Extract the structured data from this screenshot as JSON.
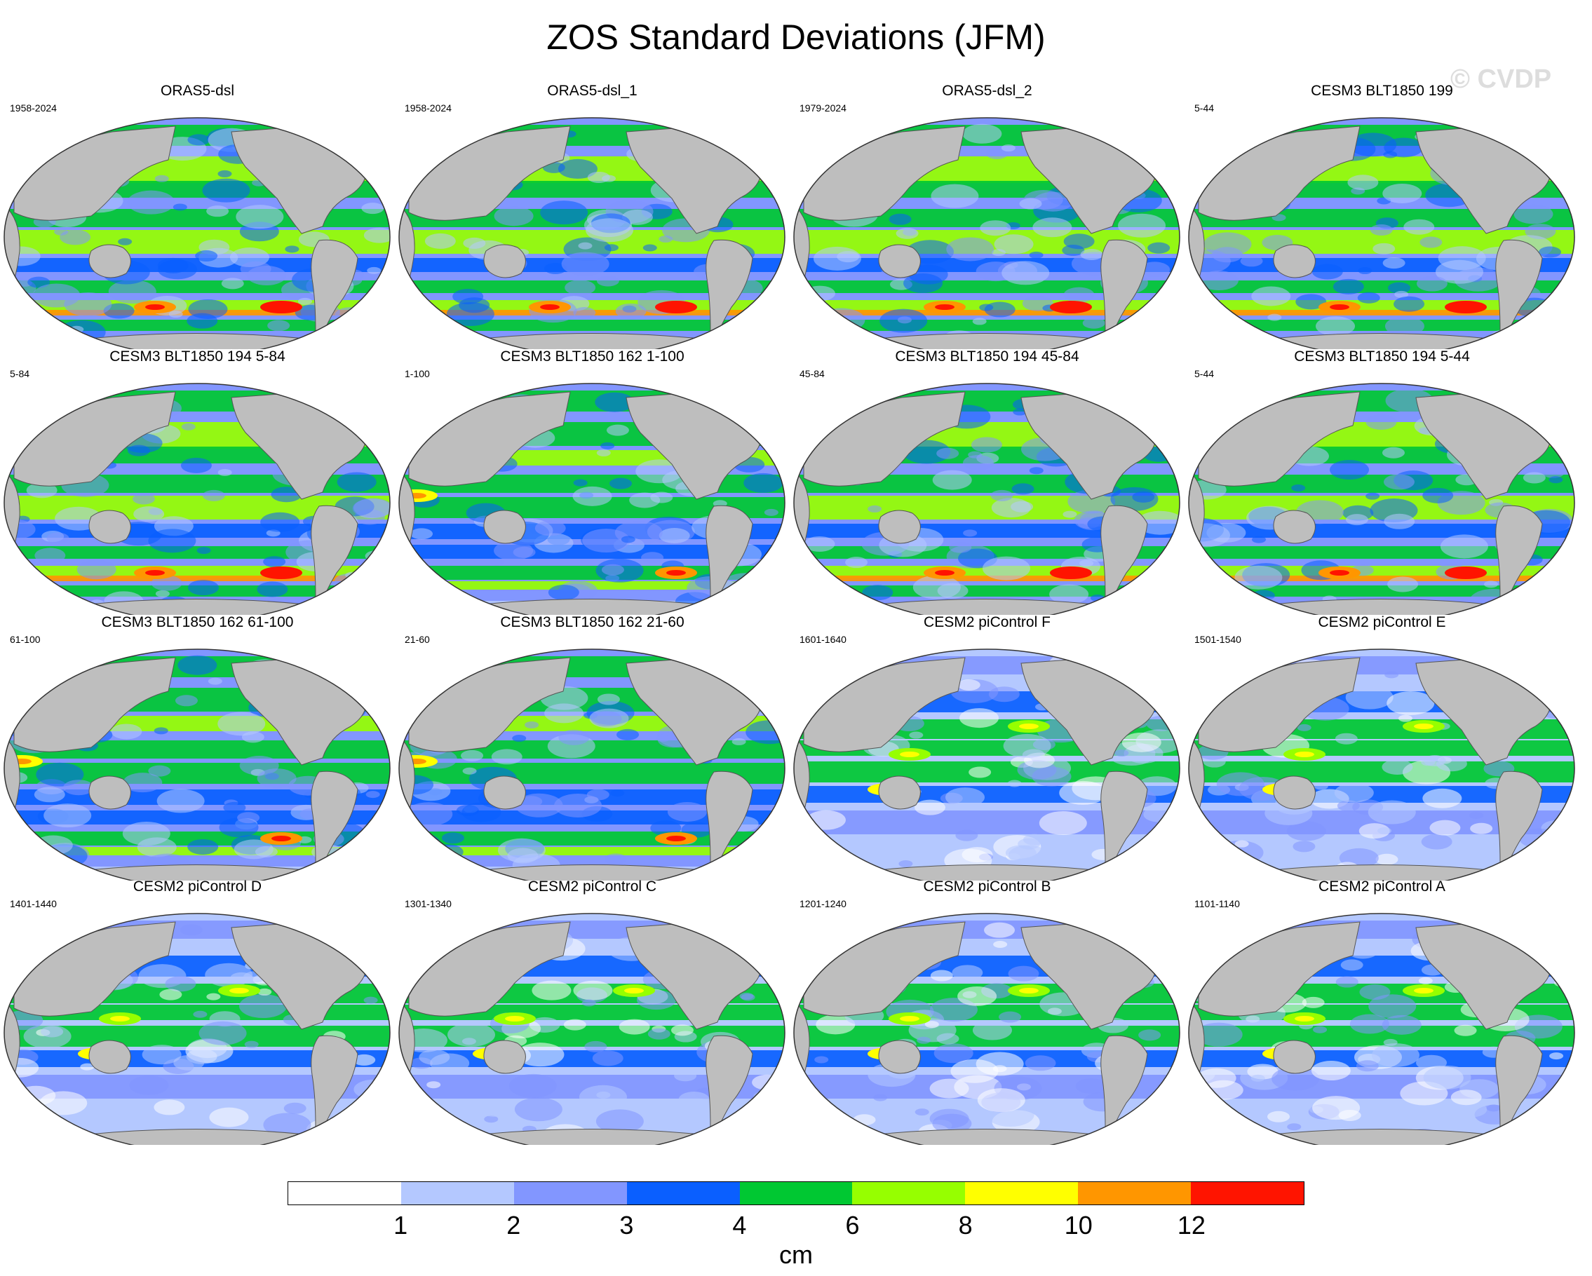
{
  "title": "ZOS Standard Deviations (JFM)",
  "watermark": "© CVDP",
  "panels": [
    {
      "title": "ORAS5-dsl",
      "years": "1958-2024",
      "style": "strong"
    },
    {
      "title": "ORAS5-dsl_1",
      "years": "1958-2024",
      "style": "strong"
    },
    {
      "title": "ORAS5-dsl_2",
      "years": "1979-2024",
      "style": "strong"
    },
    {
      "title": "CESM3 BLT1850 199",
      "years": "5-44",
      "style": "strong"
    },
    {
      "title": "CESM3 BLT1850 194 5-84",
      "years": "5-84",
      "style": "strong"
    },
    {
      "title": "CESM3 BLT1850 162 1-100",
      "years": "1-100",
      "style": "medium"
    },
    {
      "title": "CESM3 BLT1850 194 45-84",
      "years": "45-84",
      "style": "strong"
    },
    {
      "title": "CESM3 BLT1850 194 5-44",
      "years": "5-44",
      "style": "strong"
    },
    {
      "title": "CESM3 BLT1850 162 61-100",
      "years": "61-100",
      "style": "medium"
    },
    {
      "title": "CESM3 BLT1850 162 21-60",
      "years": "21-60",
      "style": "medium"
    },
    {
      "title": "CESM2 piControl F",
      "years": "1601-1640",
      "style": "weak"
    },
    {
      "title": "CESM2 piControl E",
      "years": "1501-1540",
      "style": "weak"
    },
    {
      "title": "CESM2 piControl D",
      "years": "1401-1440",
      "style": "weak"
    },
    {
      "title": "CESM2 piControl C",
      "years": "1301-1340",
      "style": "weak"
    },
    {
      "title": "CESM2 piControl B",
      "years": "1201-1240",
      "style": "weak"
    },
    {
      "title": "CESM2 piControl A",
      "years": "1101-1140",
      "style": "weak"
    }
  ],
  "colorbar": {
    "units": "cm",
    "labels": [
      "1",
      "2",
      "3",
      "4",
      "6",
      "8",
      "10",
      "12"
    ],
    "colors": [
      "#ffffff",
      "#b4c8ff",
      "#8296ff",
      "#0a5fff",
      "#00c832",
      "#96ff00",
      "#ffff00",
      "#ff9600",
      "#ff1400"
    ]
  },
  "land_color": "#bebebe"
}
